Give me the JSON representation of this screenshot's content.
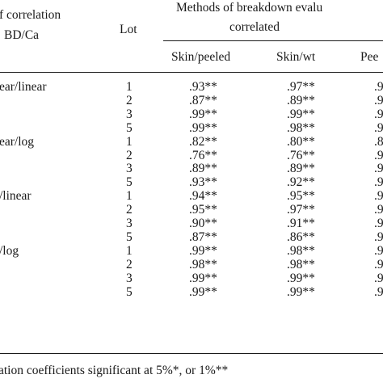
{
  "header": {
    "type_label_line1": "f correlation",
    "type_label_line2": "BD/Ca",
    "lot_label": "Lot",
    "methods_line1": "Methods of breakdown evalu",
    "methods_line2": "correlated",
    "col_skin_peeled": "Skin/peeled",
    "col_skin_wt": "Skin/wt",
    "col_peeled_partial": "Pee"
  },
  "groups": [
    {
      "label": "ear/linear",
      "rows": [
        {
          "lot": "1",
          "skin_peeled": ".93**",
          "skin_wt": ".97**",
          "peeled": ".9"
        },
        {
          "lot": "2",
          "skin_peeled": ".87**",
          "skin_wt": ".89**",
          "peeled": ".9"
        },
        {
          "lot": "3",
          "skin_peeled": ".99**",
          "skin_wt": ".99**",
          "peeled": ".9"
        },
        {
          "lot": "5",
          "skin_peeled": ".99**",
          "skin_wt": ".98**",
          "peeled": ".9"
        }
      ]
    },
    {
      "label": "ear/log",
      "rows": [
        {
          "lot": "1",
          "skin_peeled": ".82**",
          "skin_wt": ".80**",
          "peeled": ".8"
        },
        {
          "lot": "2",
          "skin_peeled": ".76**",
          "skin_wt": ".76**",
          "peeled": ".9"
        },
        {
          "lot": "3",
          "skin_peeled": ".89**",
          "skin_wt": ".89**",
          "peeled": ".9"
        },
        {
          "lot": "5",
          "skin_peeled": ".93**",
          "skin_wt": ".92**",
          "peeled": ".9"
        }
      ]
    },
    {
      "label": "/linear",
      "rows": [
        {
          "lot": "1",
          "skin_peeled": ".94**",
          "skin_wt": ".95**",
          "peeled": ".9"
        },
        {
          "lot": "2",
          "skin_peeled": ".95**",
          "skin_wt": ".97**",
          "peeled": ".9"
        },
        {
          "lot": "3",
          "skin_peeled": ".90**",
          "skin_wt": ".91**",
          "peeled": ".9"
        },
        {
          "lot": "5",
          "skin_peeled": ".87**",
          "skin_wt": ".86**",
          "peeled": ".9"
        }
      ]
    },
    {
      "label": "/log",
      "rows": [
        {
          "lot": "1",
          "skin_peeled": ".99**",
          "skin_wt": ".98**",
          "peeled": ".9"
        },
        {
          "lot": "2",
          "skin_peeled": ".98**",
          "skin_wt": ".98**",
          "peeled": ".9"
        },
        {
          "lot": "3",
          "skin_peeled": ".99**",
          "skin_wt": ".99**",
          "peeled": ".9"
        },
        {
          "lot": "5",
          "skin_peeled": ".99**",
          "skin_wt": ".99**",
          "peeled": ".9"
        }
      ]
    }
  ],
  "footnote": "ation coefficients significant at 5%*, or 1%**"
}
